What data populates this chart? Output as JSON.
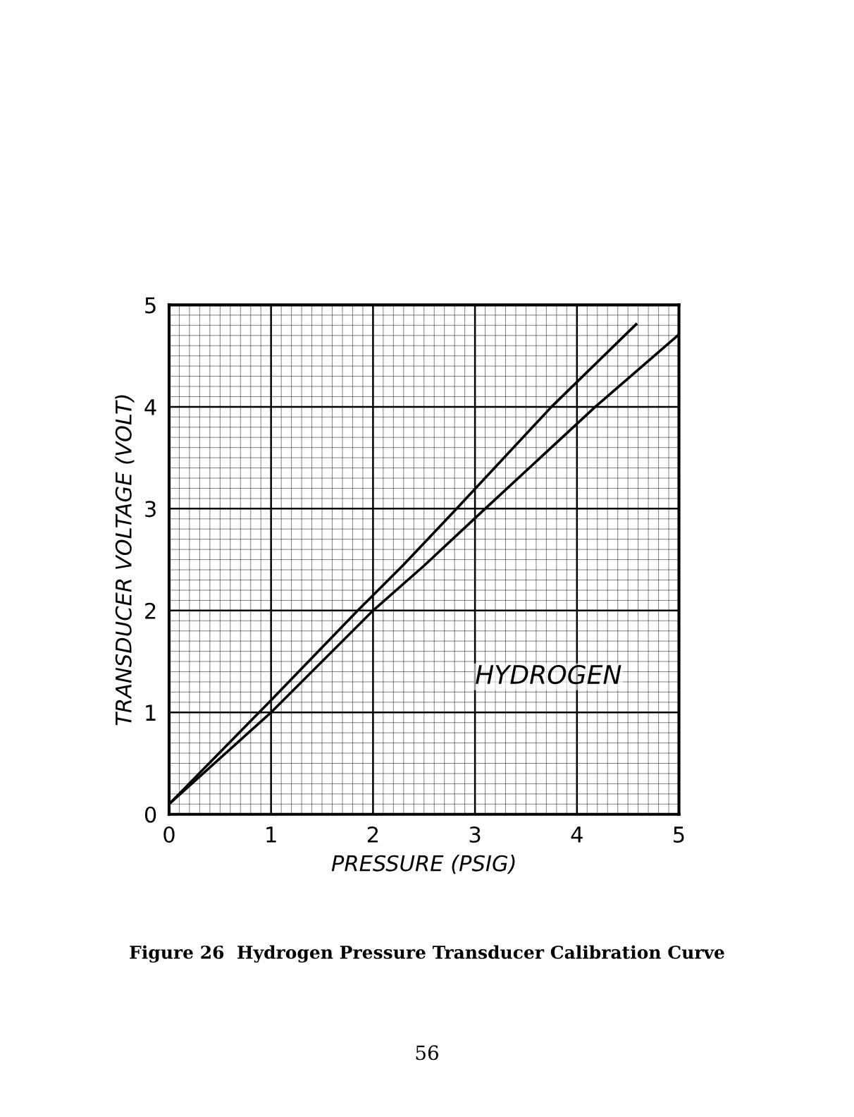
{
  "chart_data": {
    "type": "line",
    "xlabel": "PRESSURE (PSIG)",
    "ylabel": "TRANSDUCER VOLTAGE (VOLT)",
    "series": [
      {
        "color": "#000000",
        "x": [
          0,
          1,
          1.85,
          2.3,
          2.82,
          3.75,
          4.58
        ],
        "values": [
          0.1,
          1.12,
          2,
          2.45,
          3,
          4,
          4.81
        ]
      },
      {
        "color": "#000000",
        "x": [
          0,
          1,
          2,
          2.5,
          3.1,
          4.18,
          5
        ],
        "values": [
          0.1,
          1.0,
          2,
          2.44,
          3,
          4,
          4.71
        ]
      }
    ],
    "xlim": [
      0,
      5
    ],
    "ylim": [
      0,
      5
    ],
    "xticks": [
      0,
      1,
      2,
      3,
      4,
      5
    ],
    "yticks": [
      0,
      1,
      2,
      3,
      4,
      5
    ],
    "grid": true,
    "marker": "none",
    "line_style": "solid",
    "annotations": [
      "HYDROGEN",
      "Figure 26  Hydrogen Pressure Transducer Calibration Curve",
      "56"
    ]
  }
}
